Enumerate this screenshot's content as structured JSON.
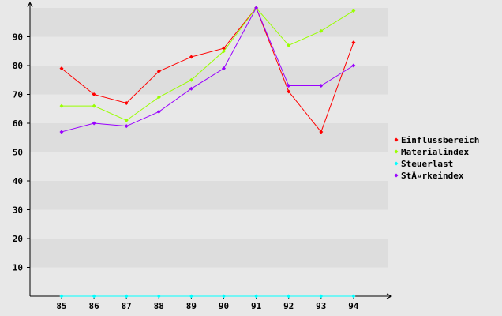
{
  "chart_data": {
    "type": "line",
    "categories": [
      "85",
      "86",
      "87",
      "88",
      "89",
      "90",
      "91",
      "92",
      "93",
      "94"
    ],
    "y_ticks": [
      "10",
      "20",
      "30",
      "40",
      "50",
      "60",
      "70",
      "80",
      "90"
    ],
    "ylim": [
      0,
      100
    ],
    "grid": "horizontal bands",
    "legend_position": "right",
    "series": [
      {
        "name": "Einflussbereich",
        "color": "#ff0000",
        "values": [
          79,
          70,
          67,
          78,
          83,
          86,
          100,
          71,
          57,
          88
        ]
      },
      {
        "name": "Materialindex",
        "color": "#99ff00",
        "values": [
          66,
          66,
          61,
          69,
          75,
          85,
          100,
          87,
          92,
          99
        ]
      },
      {
        "name": "Steuerlast",
        "color": "#00ffff",
        "values": [
          0,
          0,
          0,
          0,
          0,
          0,
          0,
          0,
          0,
          0
        ]
      },
      {
        "name": "StÃ¤rkeindex",
        "color": "#9900ff",
        "values": [
          57,
          60,
          59,
          64,
          72,
          79,
          100,
          73,
          73,
          80
        ]
      }
    ]
  }
}
